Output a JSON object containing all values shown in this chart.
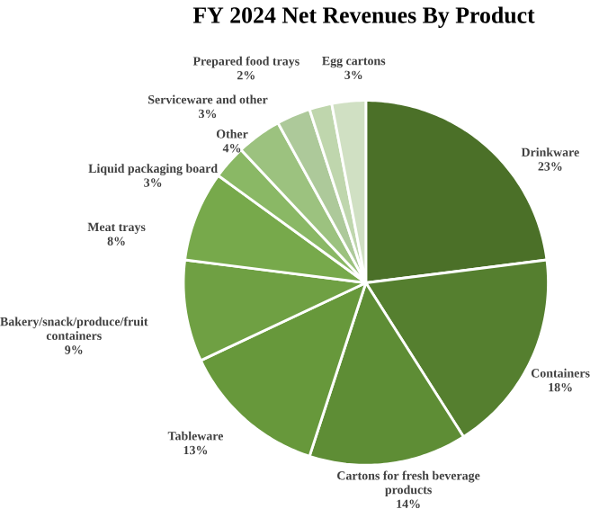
{
  "chart_data": {
    "type": "pie",
    "title": "FY 2024 Net Revenues By Product",
    "categories": [
      "Drinkware",
      "Containers",
      "Cartons for fresh beverage products",
      "Tableware",
      "Bakery/snack/produce/fruit containers",
      "Meat trays",
      "Liquid packaging board",
      "Other",
      "Serviceware and other",
      "Prepared food trays",
      "Egg cartons"
    ],
    "values": [
      23,
      18,
      14,
      13,
      9,
      8,
      3,
      4,
      3,
      2,
      3
    ],
    "value_labels": [
      "23%",
      "18%",
      "14%",
      "13%",
      "9%",
      "8%",
      "3%",
      "4%",
      "3%",
      "2%",
      "3%"
    ],
    "colors": [
      "#4b7028",
      "#557f2f",
      "#5e8d35",
      "#67983b",
      "#6fa043",
      "#77a94b",
      "#8ab865",
      "#9cc27f",
      "#adc99a",
      "#bfd6ad",
      "#d0e0c3"
    ],
    "legend": false
  }
}
